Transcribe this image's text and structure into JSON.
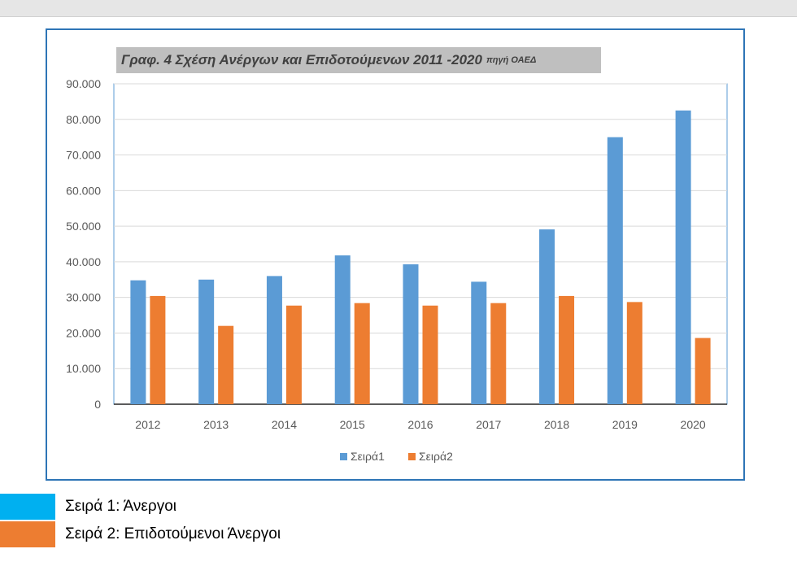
{
  "chart_data": {
    "type": "bar",
    "title": "Γραφ. 4 Σχέση Ανέργων και Επιδοτούμενων 2011 -2020",
    "title_source": "πηγή ΟΑΕΔ",
    "categories": [
      "2012",
      "2013",
      "2014",
      "2015",
      "2016",
      "2017",
      "2018",
      "2019",
      "2020"
    ],
    "series": [
      {
        "name": "Σειρά1",
        "color": "#5b9bd5",
        "values": [
          34800,
          35000,
          36000,
          41800,
          39300,
          34400,
          49100,
          75000,
          82500
        ]
      },
      {
        "name": "Σειρά2",
        "color": "#ed7d31",
        "values": [
          30400,
          22000,
          27700,
          28400,
          27700,
          28400,
          30400,
          28700,
          18600
        ]
      }
    ],
    "ylim": [
      0,
      90000
    ],
    "y_ticks": [
      0,
      10000,
      20000,
      30000,
      40000,
      50000,
      60000,
      70000,
      80000,
      90000
    ],
    "y_tick_labels": [
      "0",
      "10.000",
      "20.000",
      "30.000",
      "40.000",
      "50.000",
      "60.000",
      "70.000",
      "80.000",
      "90.000"
    ],
    "grid": true,
    "legend_placement": "bottom"
  },
  "footer_legend": [
    {
      "label": "Σειρά 1: Άνεργοι",
      "color": "#00b0f0"
    },
    {
      "label": "Σειρά 2: Επιδοτούμενοι Άνεργοι",
      "color": "#ed7d31"
    }
  ]
}
